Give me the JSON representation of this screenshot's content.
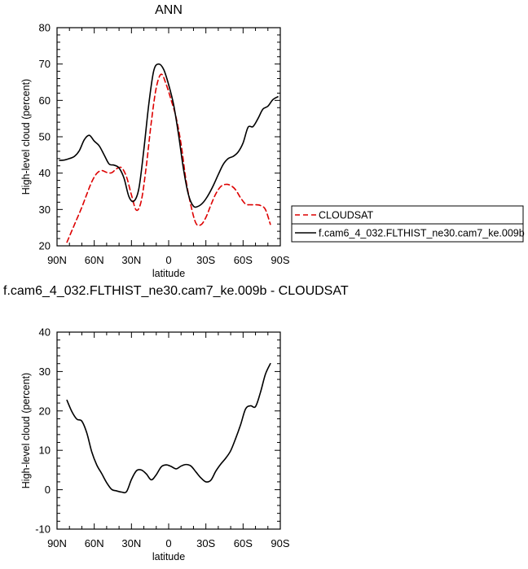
{
  "legend": {
    "entries": [
      {
        "label": "CLOUDSAT",
        "color": "#dd0000",
        "dash": true
      },
      {
        "label": "f.cam6_4_032.FLTHIST_ne30.cam7_ke.009b",
        "color": "#000000",
        "dash": false
      }
    ]
  },
  "chart_data": [
    {
      "type": "line",
      "title": "ANN",
      "xlabel": "latitude",
      "ylabel": "High-level cloud (percent)",
      "xlim": [
        90,
        -90
      ],
      "ylim": [
        20,
        80
      ],
      "xticks": [
        90,
        60,
        30,
        0,
        -30,
        -60,
        -90
      ],
      "xtick_labels": [
        "90N",
        "60N",
        "30N",
        "0",
        "30S",
        "60S",
        "90S"
      ],
      "yticks": [
        20,
        30,
        40,
        50,
        60,
        70,
        80
      ],
      "ytick_labels": [
        "20",
        "30",
        "40",
        "50",
        "60",
        "70",
        "80"
      ],
      "grid": false,
      "legend_position": "right",
      "series": [
        {
          "name": "CLOUDSAT",
          "color": "#dd0000",
          "dash": "6,4",
          "x": [
            82,
            78,
            74,
            70,
            66,
            62,
            58,
            54,
            50,
            46,
            42,
            38,
            34,
            30,
            26,
            22,
            18,
            14,
            10,
            6,
            2,
            -2,
            -6,
            -10,
            -14,
            -18,
            -22,
            -26,
            -30,
            -34,
            -38,
            -42,
            -46,
            -50,
            -54,
            -58,
            -62,
            -66,
            -70,
            -74,
            -78,
            -82
          ],
          "y": [
            21.0,
            24.2,
            27.4,
            30.6,
            34.2,
            37.6,
            39.9,
            40.7,
            40.2,
            40.1,
            41.2,
            41.5,
            39.0,
            34.0,
            29.8,
            32.5,
            42.0,
            54.0,
            63.5,
            67.2,
            64.4,
            60.1,
            55.3,
            48.0,
            38.0,
            31.0,
            26.2,
            25.8,
            27.8,
            31.2,
            34.3,
            36.3,
            36.9,
            36.6,
            35.4,
            33.2,
            31.5,
            31.3,
            31.3,
            31.1,
            30.0,
            25.9
          ]
        },
        {
          "name": "f.cam6_4_032.FLTHIST_ne30.cam7_ke.009b",
          "color": "#000000",
          "dash": "",
          "x": [
            88,
            84,
            80,
            76,
            72,
            68,
            64,
            60,
            56,
            52,
            48,
            44,
            40,
            36,
            32,
            28,
            24,
            20,
            16,
            12,
            8,
            4,
            0,
            -4,
            -8,
            -12,
            -16,
            -20,
            -24,
            -28,
            -32,
            -36,
            -40,
            -44,
            -48,
            -52,
            -56,
            -60,
            -64,
            -68,
            -72,
            -76,
            -80,
            -84,
            -88
          ],
          "y": [
            43.5,
            43.6,
            44.0,
            44.6,
            46.2,
            49.2,
            50.4,
            48.8,
            47.5,
            45.0,
            42.5,
            42.2,
            41.4,
            38.6,
            33.5,
            32.3,
            35.8,
            46.5,
            59.0,
            68.2,
            70.0,
            68.5,
            64.3,
            58.8,
            50.5,
            41.0,
            34.0,
            30.9,
            30.9,
            32.0,
            34.0,
            36.6,
            39.6,
            42.4,
            44.0,
            44.6,
            45.8,
            48.3,
            52.6,
            52.8,
            55.0,
            57.6,
            58.4,
            60.2,
            61.0
          ]
        }
      ]
    },
    {
      "type": "line",
      "title": "f.cam6_4_032.FLTHIST_ne30.cam7_ke.009b - CLOUDSAT",
      "xlabel": "latitude",
      "ylabel": "High-level cloud (percent)",
      "xlim": [
        90,
        -90
      ],
      "ylim": [
        -10,
        40
      ],
      "xticks": [
        90,
        60,
        30,
        0,
        -30,
        -60,
        -90
      ],
      "xtick_labels": [
        "90N",
        "60N",
        "30N",
        "0",
        "30S",
        "60S",
        "90S"
      ],
      "yticks": [
        -10,
        0,
        10,
        20,
        30,
        40
      ],
      "ytick_labels": [
        "-10",
        "0",
        "10",
        "20",
        "30",
        "40"
      ],
      "grid": false,
      "series": [
        {
          "color": "#000000",
          "dash": "",
          "x": [
            82,
            78,
            74,
            70,
            66,
            62,
            58,
            54,
            50,
            46,
            42,
            38,
            34,
            30,
            26,
            22,
            18,
            14,
            10,
            6,
            2,
            -2,
            -6,
            -10,
            -14,
            -18,
            -22,
            -26,
            -30,
            -34,
            -38,
            -42,
            -46,
            -50,
            -54,
            -58,
            -62,
            -66,
            -70,
            -74,
            -78,
            -82
          ],
          "y": [
            22.7,
            19.8,
            17.9,
            17.4,
            14.4,
            9.6,
            6.3,
            4.1,
            1.8,
            0.1,
            -0.3,
            -0.6,
            -0.5,
            2.6,
            4.8,
            5.0,
            4.0,
            2.5,
            3.8,
            5.8,
            6.3,
            5.9,
            5.3,
            6.0,
            6.4,
            6.0,
            4.5,
            3.0,
            2.0,
            2.4,
            4.7,
            6.5,
            8.0,
            9.9,
            13.0,
            16.5,
            20.5,
            21.3,
            21.1,
            24.7,
            29.3,
            32.0
          ]
        }
      ]
    }
  ]
}
